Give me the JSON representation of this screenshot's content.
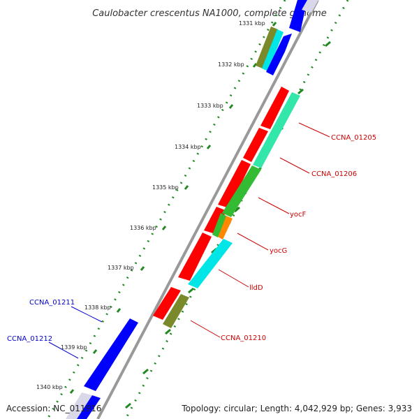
{
  "title": "Caulobacter crescentus NA1000, complete genome",
  "footer": {
    "accession": "Accession: NC_011916",
    "topology": "Topology: circular; Length: 4,042,929 bp; Genes: 3,933"
  },
  "ticks": [
    "1331 kbp",
    "1332 kbp",
    "1333 kbp",
    "1334 kbp",
    "1335 kbp",
    "1336 kbp",
    "1337 kbp",
    "1338 kbp",
    "1339 kbp",
    "1340 kbp"
  ],
  "gene_labels_red": [
    "CCNA_01205",
    "CCNA_01206",
    "yocF",
    "yocG",
    "lldD",
    "CCNA_01210"
  ],
  "gene_labels_blue": [
    "CCNA_01211",
    "CCNA_01212"
  ],
  "colors": {
    "backbone": "#999999",
    "reverse_strand": "#ff0000",
    "forward_strand": "#0000ff",
    "teal": "#33e6aa",
    "green": "#33bb33",
    "cyan": "#00e6e6",
    "olive": "#7a8a2a",
    "orange": "#ff8800",
    "dots": "#228822",
    "label_red": "#cc0000",
    "label_blue": "#0000cc"
  }
}
